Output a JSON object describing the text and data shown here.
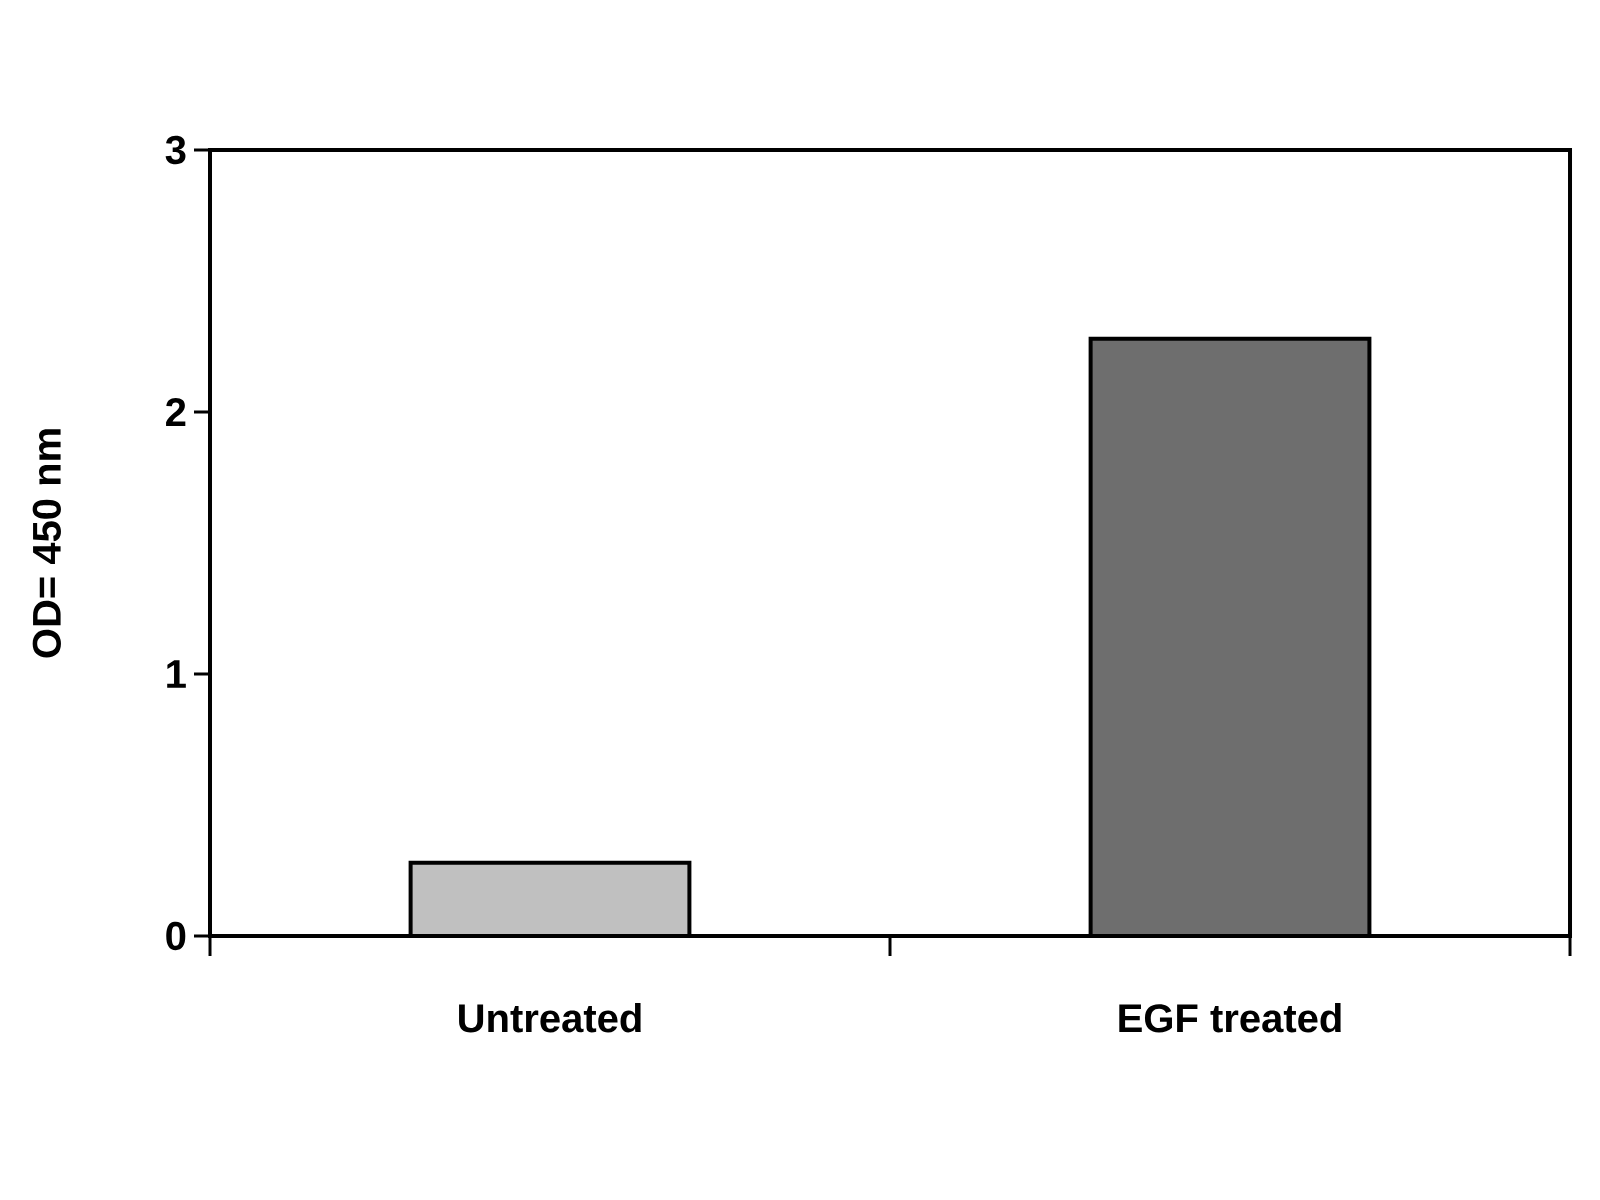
{
  "chart_data": {
    "type": "bar",
    "ylabel": "OD= 450 nm",
    "categories": [
      "Untreated",
      "EGF treated"
    ],
    "values": [
      0.28,
      2.28
    ],
    "colors": [
      "#c0c0c0",
      "#6e6e6e"
    ],
    "ylim": [
      0,
      3
    ],
    "yticks": [
      0,
      1,
      2,
      3
    ],
    "grid": false
  }
}
